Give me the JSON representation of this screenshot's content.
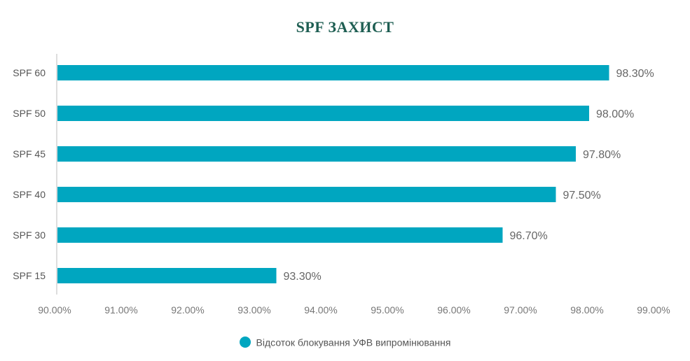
{
  "chart_data": {
    "type": "bar",
    "orientation": "horizontal",
    "title": "SPF ЗАХИСТ",
    "categories": [
      "SPF 60",
      "SPF 50",
      "SPF 45",
      "SPF 40",
      "SPF 30",
      "SPF 15"
    ],
    "series": [
      {
        "name": "Відсоток блокування УФВ випромінювання",
        "values": [
          98.3,
          98.0,
          97.8,
          97.5,
          96.7,
          93.3
        ],
        "color": "#00a6c0"
      }
    ],
    "data_labels": [
      "98.30%",
      "98.00%",
      "97.80%",
      "97.50%",
      "96.70%",
      "93.30%"
    ],
    "xlim": [
      90,
      99
    ],
    "x_ticks": [
      "90.00%",
      "91.00%",
      "92.00%",
      "93.00%",
      "94.00%",
      "95.00%",
      "96.00%",
      "97.00%",
      "98.00%",
      "99.00%"
    ],
    "grid": false,
    "legend_position": "bottom",
    "title_color": "#1e5e52"
  }
}
